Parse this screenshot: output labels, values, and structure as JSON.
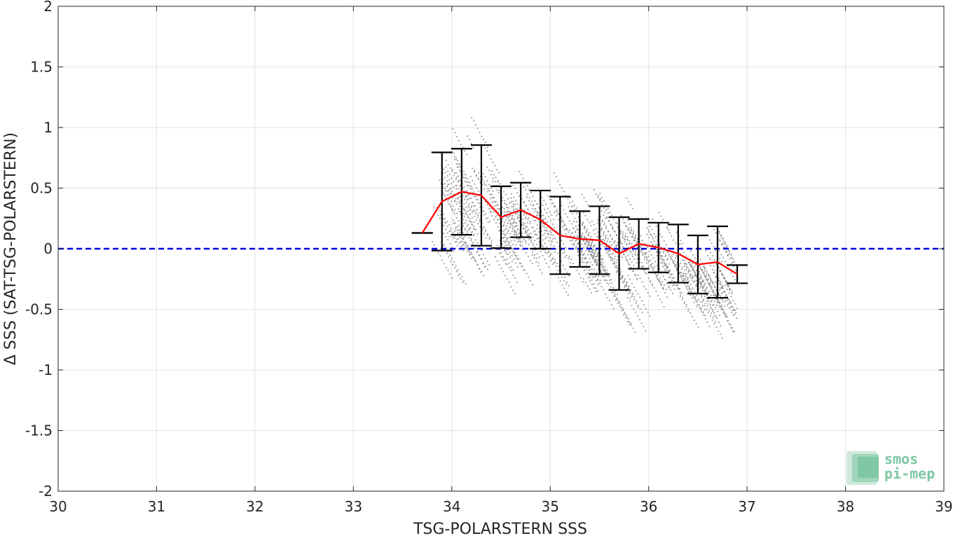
{
  "chart_data": {
    "type": "scatter",
    "xlabel": "TSG-POLARSTERN SSS",
    "ylabel": "Δ SSS (SAT-TSG-POLARSTERN)",
    "xlim": [
      30,
      39
    ],
    "ylim": [
      -2,
      2
    ],
    "xticks": [
      30,
      31,
      32,
      33,
      34,
      35,
      36,
      37,
      38,
      39
    ],
    "yticks": [
      -2,
      -1.5,
      -1,
      -0.5,
      0,
      0.5,
      1,
      1.5,
      2
    ],
    "ytick_labels": [
      "-2",
      "-1.5",
      "-1",
      "-0.5",
      "0",
      "0.5",
      "1",
      "1.5",
      "2"
    ],
    "grid": true,
    "reference_line": {
      "y": 0,
      "color": "#0000dd",
      "style": "dashed"
    },
    "scatter_color": "#8c8c8c",
    "mean_line_color": "#ff0000",
    "errorbar_color": "#000000",
    "series": [
      {
        "kind": "mean_with_std",
        "x": [
          33.7,
          33.9,
          34.1,
          34.3,
          34.5,
          34.7,
          34.9,
          35.1,
          35.3,
          35.5,
          35.7,
          35.9,
          36.1,
          36.3,
          36.5,
          36.7,
          36.9
        ],
        "y": [
          0.13,
          0.39,
          0.47,
          0.44,
          0.26,
          0.32,
          0.24,
          0.11,
          0.08,
          0.07,
          -0.04,
          0.04,
          0.01,
          -0.04,
          -0.13,
          -0.11,
          -0.21
        ],
        "std": [
          0.0,
          0.405,
          0.355,
          0.415,
          0.255,
          0.225,
          0.24,
          0.32,
          0.23,
          0.28,
          0.3,
          0.205,
          0.205,
          0.24,
          0.24,
          0.295,
          0.075
        ]
      }
    ]
  },
  "logo": {
    "line1": "smos",
    "line2": "pi-mep"
  }
}
